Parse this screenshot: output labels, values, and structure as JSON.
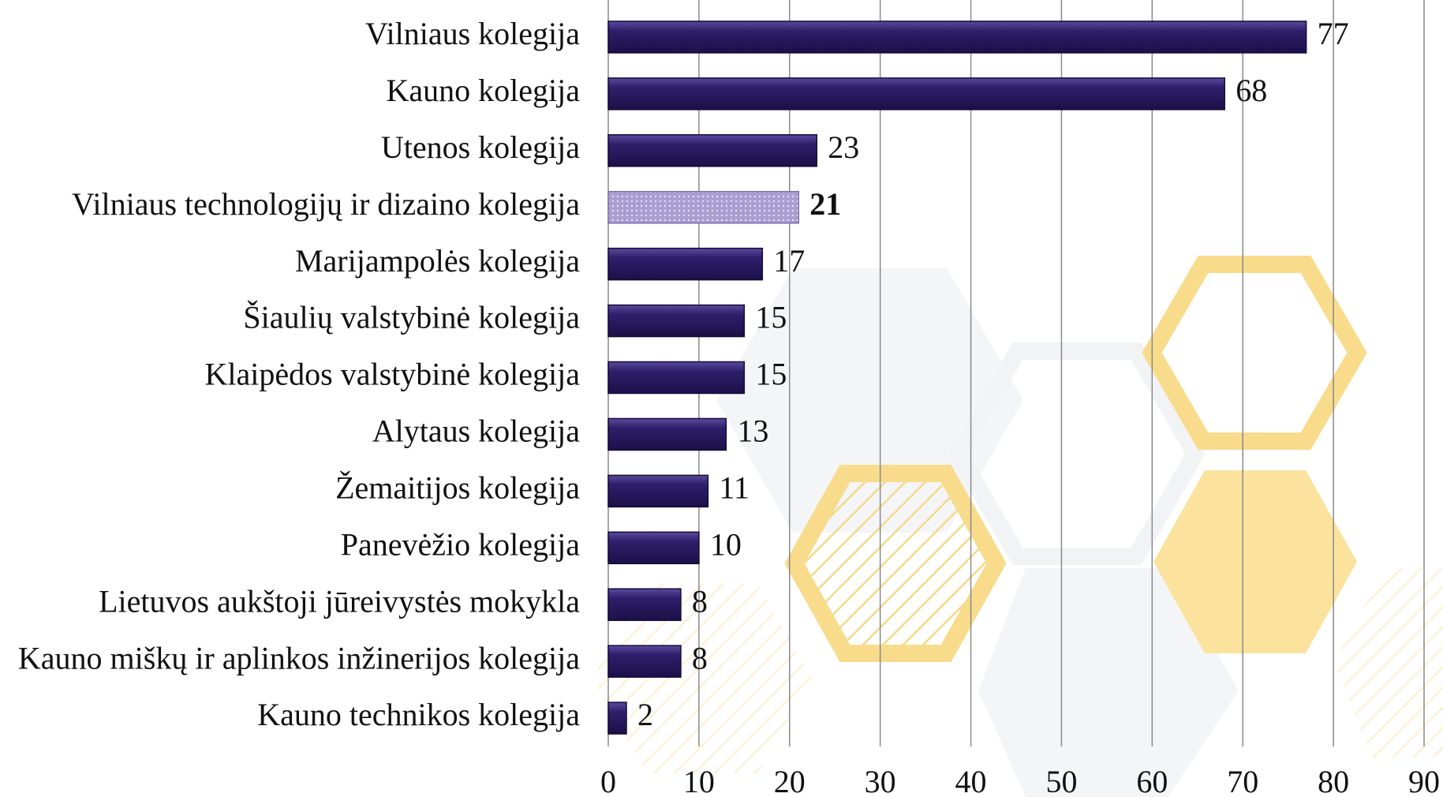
{
  "chart_data": {
    "type": "bar",
    "orientation": "horizontal",
    "categories": [
      "Vilniaus kolegija",
      "Kauno kolegija",
      "Utenos kolegija",
      "Vilniaus technologijų ir dizaino kolegija",
      "Marijampolės kolegija",
      "Šiaulių valstybinė kolegija",
      "Klaipėdos valstybinė kolegija",
      "Alytaus kolegija",
      "Žemaitijos kolegija",
      "Panevėžio kolegija",
      "Lietuvos aukštoji jūreivystės mokykla",
      "Kauno miškų ir aplinkos inžinerijos kolegija",
      "Kauno technikos kolegija"
    ],
    "values": [
      77,
      68,
      23,
      21,
      17,
      15,
      15,
      13,
      11,
      10,
      8,
      8,
      2
    ],
    "color": "#2e1f6b",
    "highlight_index": 3,
    "highlight_color": "#a89ed2",
    "xlim": [
      0,
      90
    ],
    "xticks": [
      0,
      10,
      20,
      30,
      40,
      50,
      60,
      70,
      80,
      90
    ],
    "grid": true
  }
}
